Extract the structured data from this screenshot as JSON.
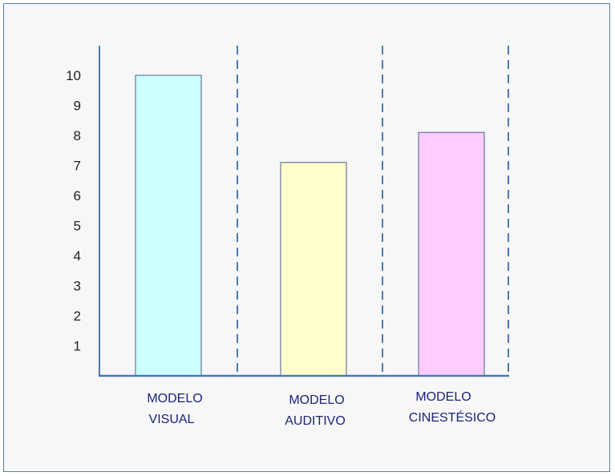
{
  "chart_data": {
    "type": "bar",
    "categories": [
      [
        "MODELO",
        "VISUAL"
      ],
      [
        "MODELO",
        "AUDITIVO"
      ],
      [
        "MODELO",
        "CINESTÉSICO"
      ]
    ],
    "values": [
      10,
      7.1,
      8.1
    ],
    "bar_colors": [
      "#ccffff",
      "#ffffcc",
      "#ffccff"
    ],
    "bar_border_color": "#4a5f8f",
    "axis_color": "#4a7ab5",
    "category_label_color": "#1a237e",
    "y_ticks": [
      "1",
      "2",
      "3",
      "4",
      "5",
      "6",
      "7",
      "8",
      "9",
      "10"
    ],
    "ylim": [
      0,
      10
    ],
    "grid": false,
    "dashed_separators": true,
    "title": "",
    "xlabel": "",
    "ylabel": ""
  }
}
